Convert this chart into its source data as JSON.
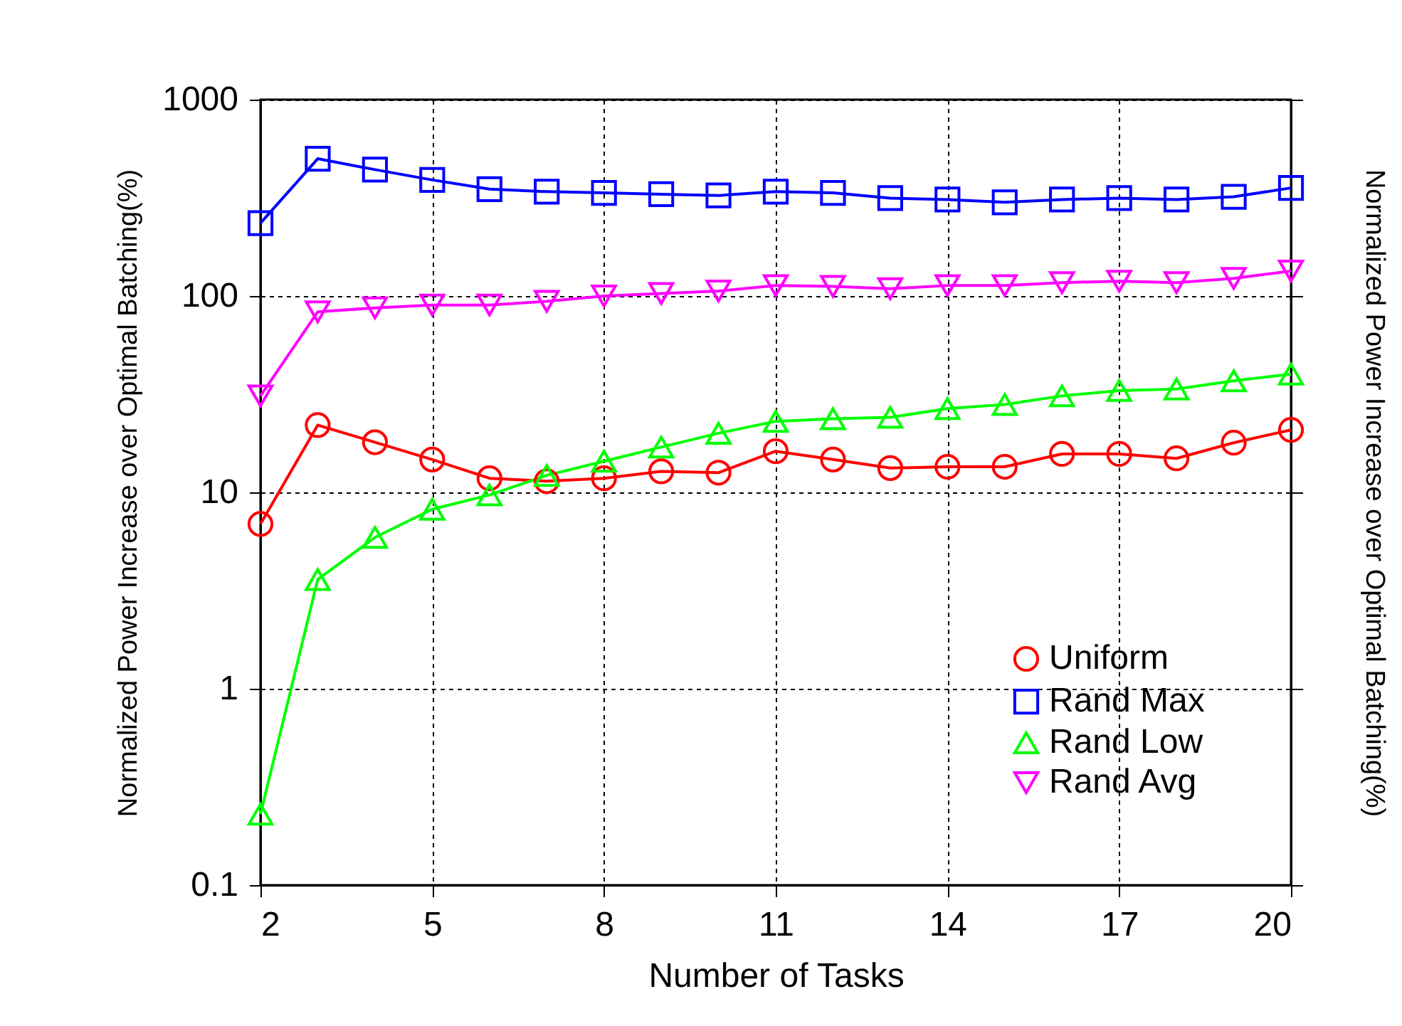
{
  "chart_data": {
    "type": "line",
    "xlabel": "Number of Tasks",
    "ylabel": "Normalized Power Increase over Optimal Batching(%)",
    "y2label": "Normalized Power Increase over Optimal Batching(%)",
    "x": [
      2,
      3,
      4,
      5,
      6,
      7,
      8,
      9,
      10,
      11,
      12,
      13,
      14,
      15,
      16,
      17,
      18,
      19,
      20
    ],
    "series": [
      {
        "name": "Uniform",
        "color": "#ff0000",
        "marker": "circle",
        "values": [
          6.9,
          22,
          18,
          14.7,
          11.8,
          11.4,
          11.8,
          12.8,
          12.6,
          16.2,
          14.7,
          13.3,
          13.5,
          13.5,
          15.7,
          15.7,
          14.9,
          17.9,
          20.8
        ]
      },
      {
        "name": "Rand Max",
        "color": "#0000ff",
        "marker": "square",
        "values": [
          235,
          500,
          440,
          390,
          350,
          340,
          335,
          330,
          325,
          340,
          335,
          315,
          310,
          300,
          310,
          315,
          310,
          320,
          355
        ]
      },
      {
        "name": "Rand Low",
        "color": "#00ff00",
        "marker": "triangle",
        "values": [
          0.23,
          3.6,
          5.9,
          8.2,
          9.7,
          12.2,
          14.4,
          17,
          20,
          23,
          23.7,
          24.1,
          26.7,
          28,
          31,
          33,
          33.6,
          37,
          40
        ]
      },
      {
        "name": "Rand Avg",
        "color": "#ff00ff",
        "marker": "triangle-down",
        "values": [
          31,
          83,
          87,
          90,
          90,
          94,
          100,
          103,
          106,
          113,
          112,
          109,
          113,
          113,
          117,
          119,
          117,
          123,
          134
        ]
      }
    ],
    "log": "y",
    "xlim": [
      2,
      20
    ],
    "xticks": [
      2,
      5,
      8,
      11,
      14,
      17,
      20
    ],
    "ylim": [
      0.1,
      1000
    ],
    "yticks": [
      0.1,
      1,
      10,
      100,
      1000
    ],
    "grid": true,
    "legend": "bottom right",
    "line_style": "solid"
  }
}
